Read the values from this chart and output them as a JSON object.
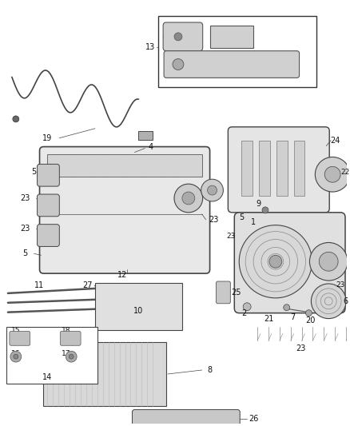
{
  "bg_color": "#ffffff",
  "fig_width": 4.38,
  "fig_height": 5.33,
  "dpi": 100,
  "line_color": "#333333",
  "text_color": "#111111",
  "label_fontsize": 7.0
}
